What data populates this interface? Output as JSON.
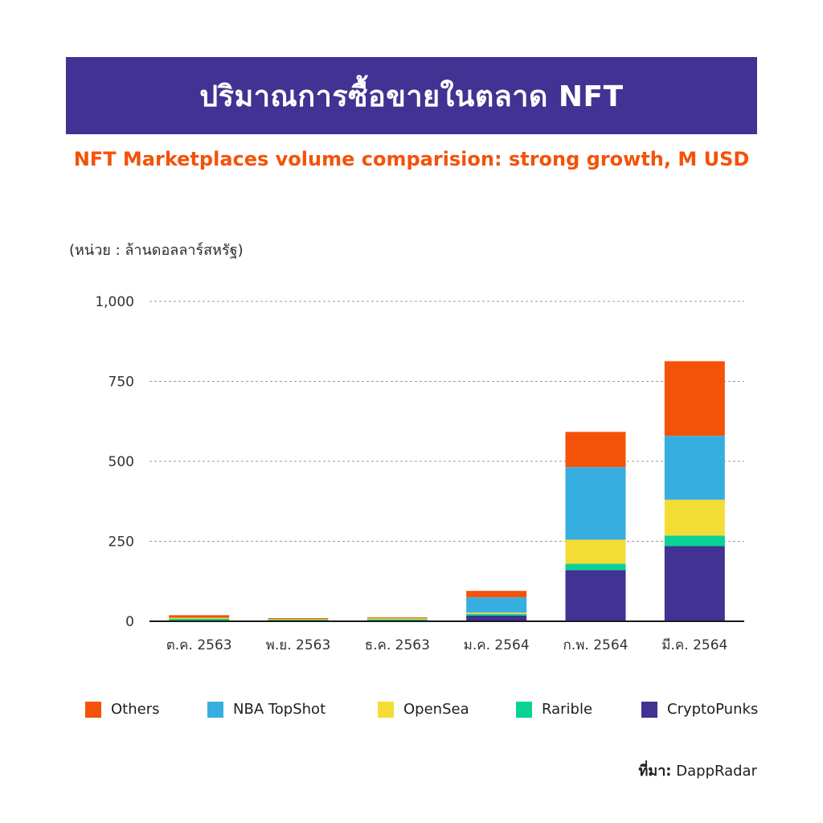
{
  "title": "ปริมาณการซื้อขายในตลาด NFT",
  "subtitle": "NFT Marketplaces volume comparision: strong growth, M USD",
  "unit_label": "(หน่วย : ล้านดอลลาร์สหรัฐ)",
  "source": {
    "label": "ที่มา:",
    "value": "DappRadar"
  },
  "colors": {
    "banner": "#413293",
    "subtitle": "#f45209",
    "Others": "#f45209",
    "NBA TopShot": "#37aee0",
    "OpenSea": "#f3dd34",
    "Rarible": "#0ad295",
    "CryptoPunks": "#413293"
  },
  "chart_data": {
    "type": "bar",
    "stacked": true,
    "categories": [
      "ต.ค. 2563",
      "พ.ย. 2563",
      "ธ.ค. 2563",
      "ม.ค. 2564",
      "ก.พ. 2564",
      "มี.ค. 2564"
    ],
    "yticks": [
      "0",
      "250",
      "500",
      "750",
      "1,000"
    ],
    "ylim": [
      0,
      1000
    ],
    "grid": true,
    "legend_position": "bottom",
    "series": [
      {
        "name": "CryptoPunks",
        "values": [
          2,
          1,
          1,
          18,
          160,
          235
        ]
      },
      {
        "name": "Rarible",
        "values": [
          6,
          4,
          5,
          5,
          20,
          33
        ]
      },
      {
        "name": "OpenSea",
        "values": [
          3,
          2,
          3,
          4,
          75,
          112
        ]
      },
      {
        "name": "NBA TopShot",
        "values": [
          0,
          0,
          0,
          48,
          227,
          200
        ]
      },
      {
        "name": "Others",
        "values": [
          8,
          3,
          3,
          20,
          110,
          233
        ]
      }
    ]
  },
  "legend": [
    {
      "name": "Others",
      "color": "#f45209"
    },
    {
      "name": "NBA TopShot",
      "color": "#37aee0"
    },
    {
      "name": "OpenSea",
      "color": "#f3dd34"
    },
    {
      "name": "Rarible",
      "color": "#0ad295"
    },
    {
      "name": "CryptoPunks",
      "color": "#413293"
    }
  ]
}
